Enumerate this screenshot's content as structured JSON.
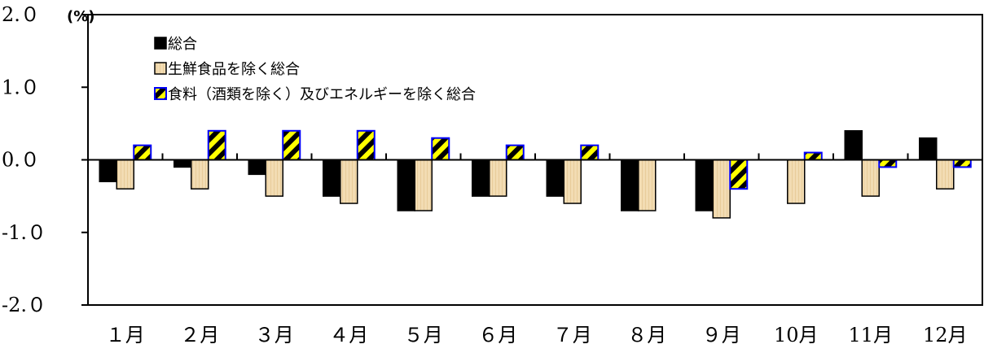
{
  "chart_data": {
    "type": "bar",
    "categories": [
      "１月",
      "２月",
      "３月",
      "４月",
      "５月",
      "６月",
      "７月",
      "８月",
      "９月",
      "10月",
      "11月",
      "12月"
    ],
    "series": [
      {
        "name": "総合",
        "values": [
          -0.3,
          -0.1,
          -0.2,
          -0.5,
          -0.7,
          -0.5,
          -0.5,
          -0.7,
          -0.7,
          0.0,
          0.4,
          0.3
        ],
        "color": "#000000"
      },
      {
        "name": "生鮮食品を除く総合",
        "values": [
          -0.4,
          -0.4,
          -0.5,
          -0.6,
          -0.7,
          -0.5,
          -0.6,
          -0.7,
          -0.8,
          -0.6,
          -0.5,
          -0.4
        ],
        "color": "#f2dcb3"
      },
      {
        "name": "食料（酒類を除く）及びエネルギーを除く総合",
        "values": [
          0.2,
          0.4,
          0.4,
          0.4,
          0.3,
          0.2,
          0.2,
          0.0,
          -0.4,
          0.1,
          -0.1,
          -0.1
        ],
        "color": "#ffff00",
        "stripe_color": "#000000",
        "border_color": "#0000ff"
      }
    ],
    "ylim": [
      -2.0,
      2.0
    ],
    "yticks": [
      "2.０",
      "1.０",
      "0.０",
      "-1.０",
      "-2.０"
    ],
    "ytick_values": [
      2.0,
      1.0,
      0.0,
      -1.0,
      -2.0
    ],
    "unit": "(%)",
    "legend_position": "top-left",
    "grid": false
  }
}
